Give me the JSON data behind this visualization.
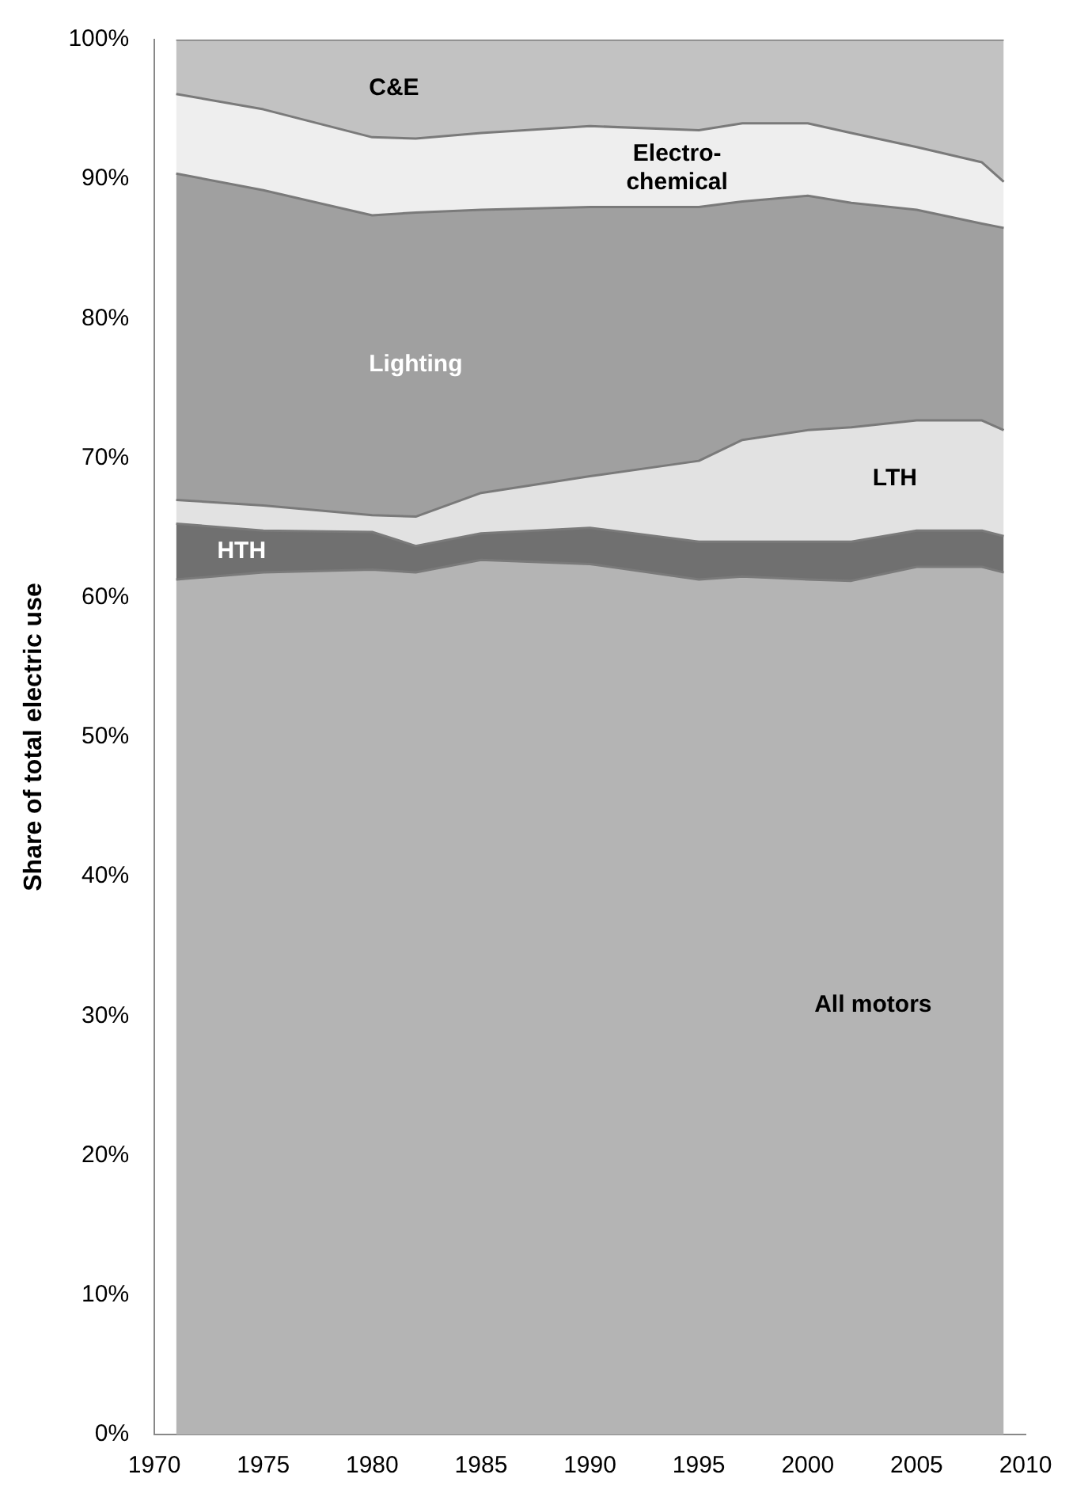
{
  "chart_data": {
    "type": "area",
    "stacked": true,
    "ylabel": "Share of total electric use",
    "x": [
      1971,
      1975,
      1980,
      1982,
      1985,
      1990,
      1995,
      1997,
      2000,
      2002,
      2005,
      2008,
      2009
    ],
    "series": [
      {
        "name": "All motors",
        "color": "#b4b4b4",
        "values": [
          61.3,
          61.8,
          62,
          61.8,
          62.7,
          62.4,
          61.3,
          61.5,
          61.3,
          61.2,
          62.2,
          62.2,
          61.8
        ]
      },
      {
        "name": "HTH",
        "color": "#707070",
        "values": [
          4,
          3,
          2.7,
          1.9,
          1.9,
          2.6,
          2.7,
          2.5,
          2.7,
          2.8,
          2.6,
          2.6,
          2.6
        ]
      },
      {
        "name": "LTH",
        "color": "#e2e2e2",
        "values": [
          1.7,
          1.8,
          1.2,
          2.1,
          2.9,
          3.7,
          5.8,
          7.3,
          8,
          8.2,
          7.9,
          7.9,
          7.6
        ]
      },
      {
        "name": "Lighting",
        "color": "#a0a0a0",
        "values": [
          23.4,
          22.6,
          21.5,
          21.8,
          20.3,
          19.3,
          18.2,
          17.1,
          16.8,
          16.1,
          15.1,
          14.1,
          14.5
        ]
      },
      {
        "name": "Electro-\nchemical",
        "color": "#eeeeee",
        "values": [
          5.7,
          5.8,
          5.6,
          5.3,
          5.5,
          5.8,
          5.5,
          5.6,
          5.2,
          5,
          4.5,
          4.4,
          3.3
        ]
      },
      {
        "name": "C&E",
        "color": "#c2c2c2",
        "values": [
          3.9,
          5,
          7,
          7.1,
          6.7,
          6.2,
          6.5,
          6,
          6,
          6.7,
          7.7,
          8.8,
          10.2
        ]
      }
    ],
    "xlim": [
      1970,
      2010
    ],
    "xticks": [
      1970,
      1975,
      1980,
      1985,
      1990,
      1995,
      2000,
      2005,
      2010
    ],
    "ylim": [
      0,
      100
    ],
    "yticks": [
      {
        "value": 0,
        "label": "0%"
      },
      {
        "value": 10,
        "label": "10%"
      },
      {
        "value": 20,
        "label": "20%"
      },
      {
        "value": 30,
        "label": "30%"
      },
      {
        "value": 40,
        "label": "40%"
      },
      {
        "value": 50,
        "label": "50%"
      },
      {
        "value": 60,
        "label": "60%"
      },
      {
        "value": 70,
        "label": "70%"
      },
      {
        "value": 80,
        "label": "80%"
      },
      {
        "value": 90,
        "label": "90%"
      },
      {
        "value": 100,
        "label": "100%"
      }
    ],
    "grid": false,
    "legend": false,
    "marker": "none",
    "line_style": "solid"
  }
}
